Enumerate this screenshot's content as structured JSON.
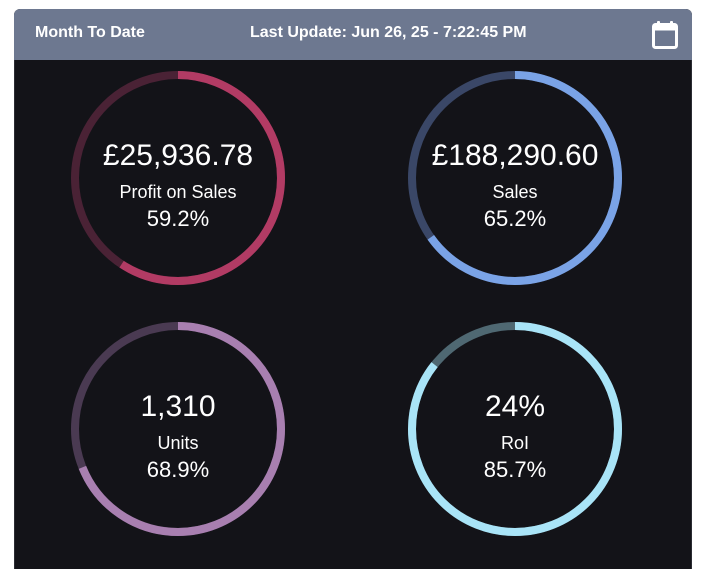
{
  "header": {
    "title": "Month To Date",
    "last_update": "Last Update: Jun 26, 25 - 7:22:45 PM",
    "calendar_icon": "calendar-icon",
    "background": "#6d7890"
  },
  "metrics": [
    {
      "value": "£25,936.78",
      "label": "Profit on Sales",
      "percent_text": "59.2%",
      "fraction": 0.592,
      "color": "#b23b64",
      "track": "#4a2235"
    },
    {
      "value": "£188,290.60",
      "label": "Sales",
      "percent_text": "65.2%",
      "fraction": 0.652,
      "color": "#7aa3e6",
      "track": "#3a4767"
    },
    {
      "value": "1,310",
      "label": "Units",
      "percent_text": "68.9%",
      "fraction": 0.689,
      "color": "#a87fb0",
      "track": "#4a3a52"
    },
    {
      "value": "24%",
      "label": "RoI",
      "percent_text": "85.7%",
      "fraction": 0.857,
      "color": "#a9e4f7",
      "track": "#4f6872"
    }
  ]
}
